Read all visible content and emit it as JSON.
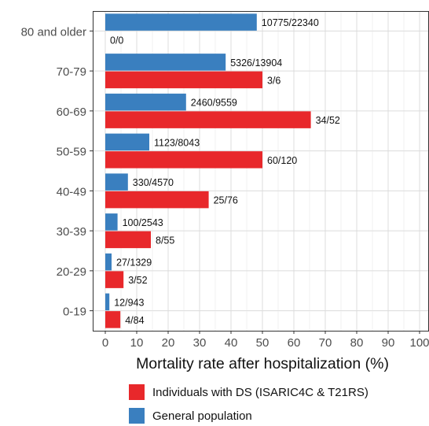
{
  "chart_data": {
    "type": "bar",
    "orientation": "horizontal",
    "categories": [
      "80 and older",
      "70-79",
      "60-69",
      "50-59",
      "40-49",
      "30-39",
      "20-29",
      "0-19"
    ],
    "series": [
      {
        "name": "General population",
        "color": "#3a7fbf",
        "values": [
          48.2,
          38.3,
          25.7,
          14.0,
          7.2,
          3.9,
          2.0,
          1.3
        ],
        "labels": [
          "10775/22340",
          "5326/13904",
          "2460/9559",
          "1123/8043",
          "330/4570",
          "100/2543",
          "27/1329",
          "12/943"
        ]
      },
      {
        "name": "Individuals with DS (ISARIC4C & T21RS)",
        "color": "#e8282b",
        "values": [
          0,
          50.0,
          65.4,
          50.0,
          32.9,
          14.5,
          5.8,
          4.8
        ],
        "labels": [
          "0/0",
          "3/6",
          "34/52",
          "60/120",
          "25/76",
          "8/55",
          "3/52",
          "4/84"
        ]
      }
    ],
    "xlabel": "Mortality rate after hospitalization (%)",
    "ylabel": "",
    "xlim": [
      0,
      100
    ],
    "xticks": [
      0,
      10,
      20,
      30,
      40,
      50,
      60,
      70,
      80,
      90,
      100
    ],
    "grid": true,
    "legend_position": "bottom"
  },
  "legend": [
    {
      "label": "Individuals with DS (ISARIC4C & T21RS)",
      "color": "#e8282b"
    },
    {
      "label": "General population",
      "color": "#3a7fbf"
    }
  ]
}
